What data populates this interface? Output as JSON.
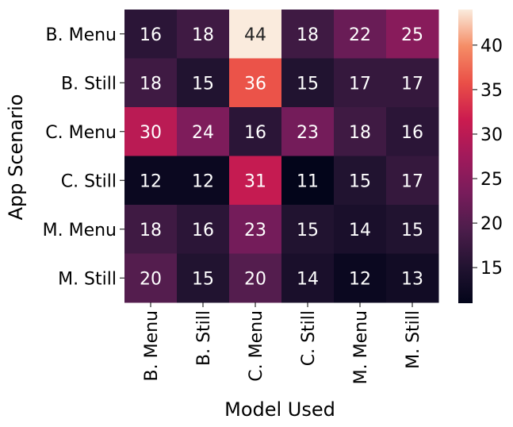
{
  "chart_data": {
    "type": "heatmap",
    "title": "",
    "xlabel": "Model Used",
    "ylabel": "App Scenario",
    "x_categories": [
      "B. Menu",
      "B. Still",
      "C. Menu",
      "C. Still",
      "M. Menu",
      "M. Still"
    ],
    "y_categories": [
      "B. Menu",
      "B. Still",
      "C. Menu",
      "C. Still",
      "M. Menu",
      "M. Still"
    ],
    "values": [
      [
        16,
        18,
        44,
        18,
        22,
        25
      ],
      [
        18,
        15,
        36,
        15,
        17,
        17
      ],
      [
        30,
        24,
        16,
        23,
        18,
        16
      ],
      [
        12,
        12,
        31,
        11,
        15,
        17
      ],
      [
        18,
        16,
        23,
        15,
        14,
        15
      ],
      [
        20,
        15,
        20,
        14,
        12,
        13
      ]
    ],
    "colorbar": {
      "range": [
        11,
        44
      ],
      "ticks": [
        15,
        20,
        25,
        30,
        35,
        40
      ],
      "colormap": "rocket"
    }
  }
}
